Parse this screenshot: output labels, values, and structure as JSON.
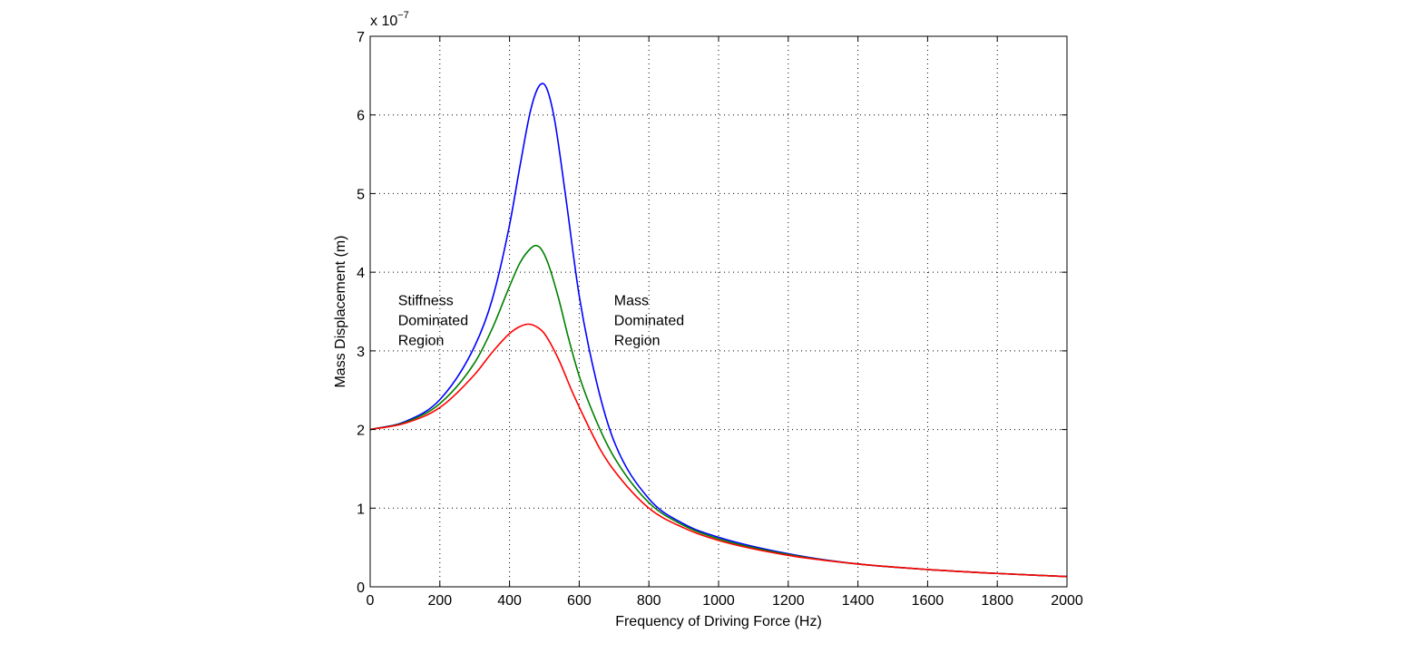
{
  "chart_data": {
    "type": "line",
    "title": "",
    "xlabel": "Frequency of Driving Force (Hz)",
    "ylabel": "Mass Displacement (m)",
    "y_scale_factor_label": "x 10",
    "y_scale_factor_exponent": "−7",
    "xlim": [
      0,
      2000
    ],
    "ylim": [
      0,
      7
    ],
    "x_ticks": [
      0,
      200,
      400,
      600,
      800,
      1000,
      1200,
      1400,
      1600,
      1800,
      2000
    ],
    "y_ticks": [
      0,
      1,
      2,
      3,
      4,
      5,
      6,
      7
    ],
    "grid": true,
    "legend": "none",
    "series": [
      {
        "color": "#0000ff",
        "x": [
          0,
          100,
          200,
          300,
          350,
          400,
          430,
          460,
          480,
          495,
          510,
          530,
          560,
          600,
          650,
          700,
          800,
          900,
          1000,
          1200,
          1400,
          1600,
          1800,
          2000
        ],
        "values": [
          2.0,
          2.1,
          2.38,
          3.06,
          3.65,
          4.6,
          5.35,
          6.05,
          6.33,
          6.4,
          6.3,
          5.92,
          5.0,
          3.7,
          2.6,
          1.85,
          1.12,
          0.8,
          0.63,
          0.42,
          0.29,
          0.22,
          0.17,
          0.13
        ]
      },
      {
        "color": "#008000",
        "x": [
          0,
          100,
          200,
          300,
          350,
          400,
          430,
          460,
          475,
          490,
          510,
          540,
          570,
          600,
          650,
          700,
          800,
          900,
          1000,
          1200,
          1400,
          1600,
          1800,
          2000
        ],
        "values": [
          2.0,
          2.09,
          2.33,
          2.85,
          3.28,
          3.82,
          4.12,
          4.3,
          4.34,
          4.3,
          4.12,
          3.68,
          3.15,
          2.68,
          2.1,
          1.65,
          1.07,
          0.78,
          0.61,
          0.41,
          0.29,
          0.22,
          0.17,
          0.13
        ]
      },
      {
        "color": "#ff0000",
        "x": [
          0,
          100,
          200,
          300,
          350,
          400,
          430,
          455,
          480,
          500,
          540,
          580,
          620,
          660,
          700,
          800,
          900,
          1000,
          1200,
          1400,
          1600,
          1800,
          2000
        ],
        "values": [
          2.0,
          2.08,
          2.28,
          2.7,
          2.98,
          3.22,
          3.31,
          3.34,
          3.3,
          3.22,
          2.9,
          2.48,
          2.1,
          1.75,
          1.48,
          1.0,
          0.75,
          0.59,
          0.4,
          0.29,
          0.22,
          0.17,
          0.13
        ]
      }
    ],
    "annotations": [
      {
        "lines": [
          "Stiffness",
          "Dominated",
          "Region"
        ],
        "x": 80,
        "y": 3.65
      },
      {
        "lines": [
          "Mass",
          "Dominated",
          "Region"
        ],
        "x": 700,
        "y": 3.65
      }
    ]
  }
}
